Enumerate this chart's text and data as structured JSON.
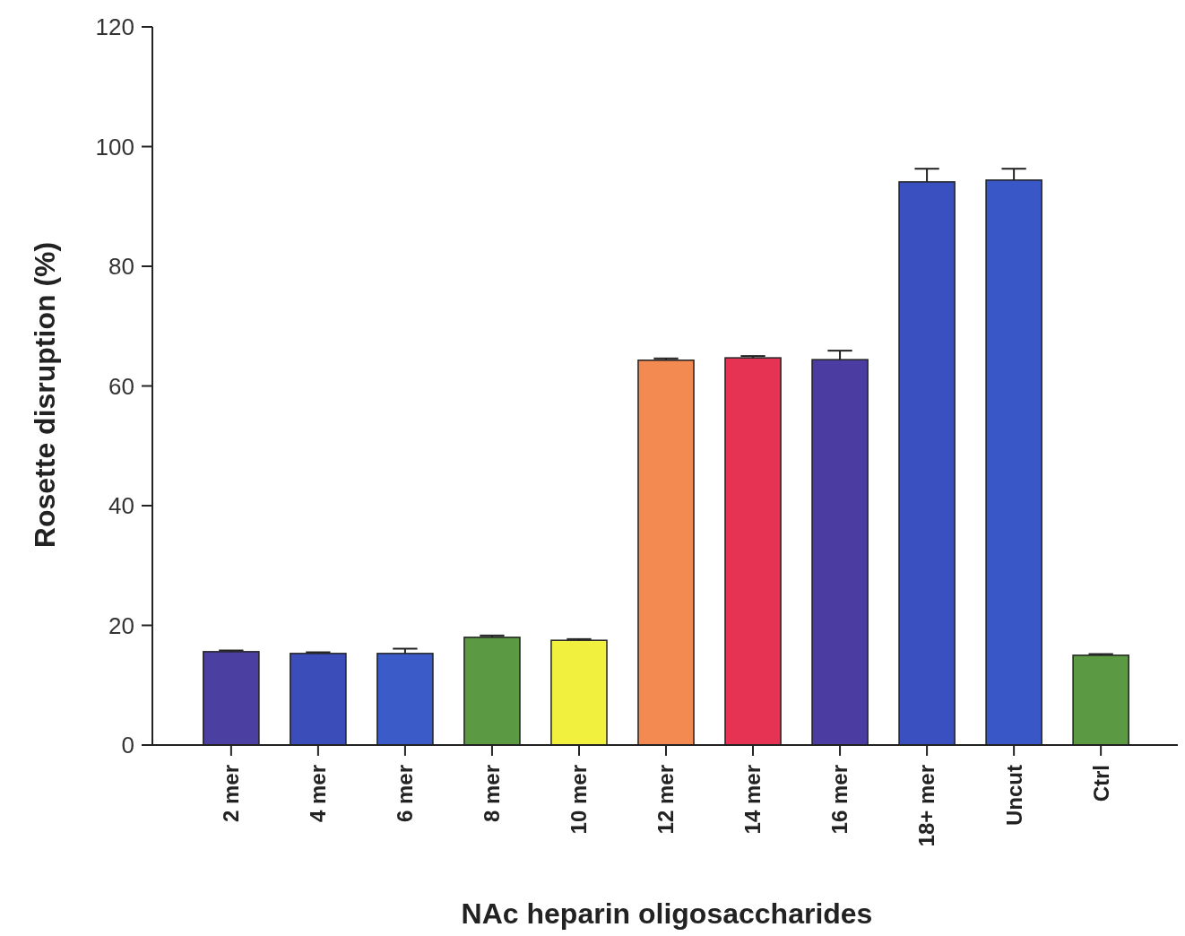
{
  "chart_data": {
    "type": "bar",
    "xlabel": "NAc heparin oligosaccharides",
    "ylabel": "Rosette disruption (%)",
    "categories": [
      "2 mer",
      "4 mer",
      "6 mer",
      "8 mer",
      "10 mer",
      "12 mer",
      "14 mer",
      "16 mer",
      "18+ mer",
      "Uncut",
      "Ctrl"
    ],
    "values": [
      15.6,
      15.3,
      15.3,
      18.0,
      17.5,
      64.3,
      64.7,
      64.4,
      94.1,
      94.4,
      15.0
    ],
    "colors": [
      "#4b3fa2",
      "#3a4db8",
      "#3a5bc8",
      "#5b9a42",
      "#f2f03e",
      "#f28a52",
      "#e63353",
      "#4a3ca0",
      "#3a4fc0",
      "#3a57c8",
      "#5b9a42"
    ],
    "errors": [
      [
        15.6,
        15.8
      ],
      [
        15.3,
        15.5
      ],
      [
        15.3,
        16.1
      ],
      [
        18.0,
        18.3
      ],
      [
        17.5,
        17.7
      ],
      [
        64.3,
        64.6
      ],
      [
        64.7,
        65.0
      ],
      [
        64.4,
        65.9
      ],
      [
        94.1,
        96.3
      ],
      [
        94.4,
        96.3
      ],
      [
        15.0,
        15.2
      ]
    ],
    "ylim": [
      0,
      120
    ],
    "yticks": [
      0,
      20,
      40,
      60,
      80,
      100,
      120
    ]
  }
}
